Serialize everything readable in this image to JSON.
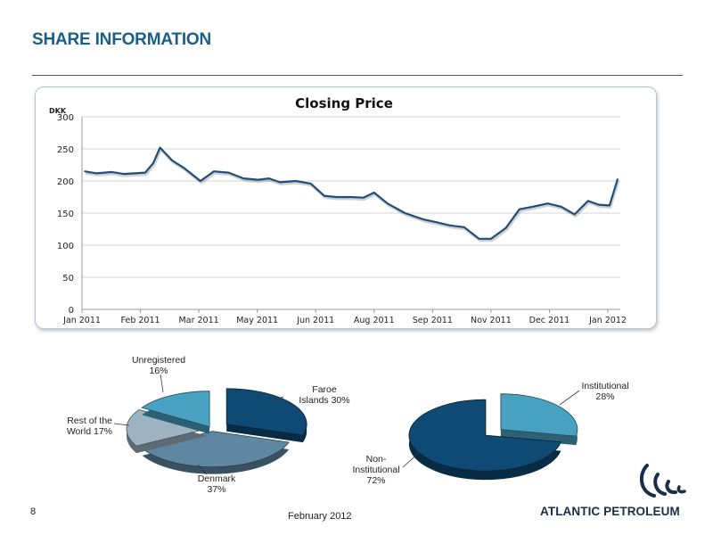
{
  "slide": {
    "title": "SHARE INFORMATION",
    "page_number": "8",
    "footer_date": "February 2012",
    "logo_text": "ATLANTIC PETROLEUM"
  },
  "colors": {
    "title": "#1a5e8a",
    "line": "#1f4e79",
    "faroe": "#0f4a74",
    "denmark": "#5f87a2",
    "rest": "#9db3c2",
    "unregistered": "#4aa2c2",
    "institutional": "#4aa2c2",
    "non_institutional": "#0f4a74"
  },
  "chart_data": [
    {
      "type": "line",
      "title": "Closing Price",
      "ylabel": "DKK",
      "ylim": [
        0,
        300
      ],
      "yticks": [
        "0",
        "50",
        "100",
        "150",
        "200",
        "250",
        "300"
      ],
      "xtick_labels": [
        "Jan 2011",
        "Feb 2011",
        "Mar 2011",
        "May 2011",
        "Jun 2011",
        "Aug 2011",
        "Sep 2011",
        "Nov 2011",
        "Dec 2011",
        "Jan 2012"
      ],
      "grid": true,
      "series": [
        {
          "x": [
            "2011-01-03",
            "2011-01-12",
            "2011-01-23",
            "2011-02-01",
            "2011-02-09",
            "2011-02-17",
            "2011-02-23",
            "2011-02-28",
            "2011-03-09",
            "2011-03-18",
            "2011-03-30",
            "2011-04-09",
            "2011-04-20",
            "2011-05-01",
            "2011-05-12",
            "2011-05-20",
            "2011-05-28",
            "2011-06-09",
            "2011-06-20",
            "2011-06-30",
            "2011-07-09",
            "2011-07-20",
            "2011-07-29",
            "2011-08-06",
            "2011-08-16",
            "2011-08-29",
            "2011-09-12",
            "2011-09-21",
            "2011-10-01",
            "2011-10-12",
            "2011-10-23",
            "2011-11-01",
            "2011-11-12",
            "2011-11-22",
            "2011-12-02",
            "2011-12-13",
            "2011-12-23",
            "2012-01-02",
            "2012-01-12",
            "2012-01-20",
            "2012-01-28",
            "2012-02-03"
          ],
          "values": [
            215,
            212,
            214,
            211,
            212,
            213,
            228,
            252,
            232,
            220,
            200,
            215,
            213,
            204,
            202,
            204,
            198,
            200,
            196,
            177,
            175,
            175,
            174,
            182,
            165,
            150,
            140,
            136,
            131,
            128,
            110,
            110,
            127,
            156,
            160,
            165,
            160,
            148,
            169,
            163,
            162,
            203
          ]
        }
      ]
    },
    {
      "type": "pie",
      "title": "",
      "slices": [
        {
          "label": "Faroe Islands",
          "value": 30,
          "display": "Faroe\nIslands 30%"
        },
        {
          "label": "Denmark",
          "value": 37,
          "display": "Denmark\n37%"
        },
        {
          "label": "Rest of the World",
          "value": 17,
          "display": "Rest of the\nWorld 17%"
        },
        {
          "label": "Unregistered",
          "value": 16,
          "display": "Unregistered\n16%"
        }
      ]
    },
    {
      "type": "pie",
      "title": "",
      "slices": [
        {
          "label": "Institutional",
          "value": 28,
          "display": "Institutional\n28%"
        },
        {
          "label": "Non-Institutional",
          "value": 72,
          "display": "Non-\nInstitutional\n72%"
        }
      ]
    }
  ]
}
